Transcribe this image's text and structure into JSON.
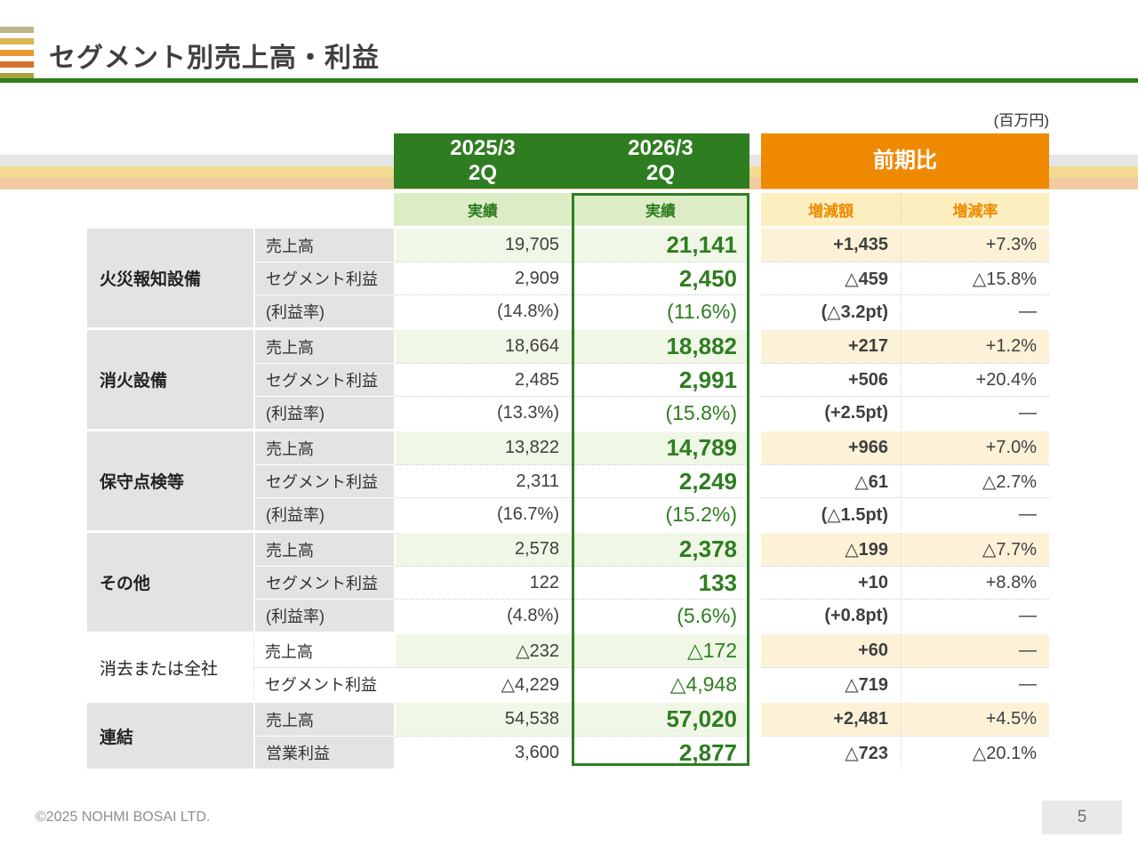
{
  "slide": {
    "title": "セグメント別売上高・利益",
    "unit_label": "(百万円)",
    "logo_colors": [
      "#c2b58a",
      "#ddb64f",
      "#e59a2f",
      "#d2732c",
      "#a6a43c"
    ],
    "footer": {
      "copyright": "©2025 NOHMI BOSAI LTD.",
      "page_number": "5"
    }
  },
  "colors": {
    "accent_green": "#2e7d20",
    "accent_orange": "#ef8a00"
  },
  "table": {
    "columns": {
      "py": {
        "title_line1": "2025/3",
        "title_line2": "2Q",
        "subtitle": "実績"
      },
      "cy": {
        "title_line1": "2026/3",
        "title_line2": "2Q",
        "subtitle": "実績"
      },
      "yoy": {
        "title": "前期比",
        "sub_amount": "増減額",
        "sub_rate": "増減率"
      }
    },
    "groups": [
      {
        "name": "火災報知設備",
        "emphasized": true,
        "rows": [
          {
            "metric": "売上高",
            "kind": "sales",
            "py": "19,705",
            "cy": "21,141",
            "diff": "+1,435",
            "rate": "+7.3%"
          },
          {
            "metric": "セグメント利益",
            "kind": "profit",
            "py": "2,909",
            "cy": "2,450",
            "diff": "△459",
            "rate": "△15.8%"
          },
          {
            "metric": "(利益率)",
            "kind": "margin",
            "py": "(14.8%)",
            "cy": "(11.6%)",
            "diff": "(△3.2pt)",
            "rate": "—"
          }
        ]
      },
      {
        "name": "消火設備",
        "emphasized": true,
        "rows": [
          {
            "metric": "売上高",
            "kind": "sales",
            "py": "18,664",
            "cy": "18,882",
            "diff": "+217",
            "rate": "+1.2%"
          },
          {
            "metric": "セグメント利益",
            "kind": "profit",
            "py": "2,485",
            "cy": "2,991",
            "diff": "+506",
            "rate": "+20.4%"
          },
          {
            "metric": "(利益率)",
            "kind": "margin",
            "py": "(13.3%)",
            "cy": "(15.8%)",
            "diff": "(+2.5pt)",
            "rate": "—"
          }
        ]
      },
      {
        "name": "保守点検等",
        "emphasized": true,
        "rows": [
          {
            "metric": "売上高",
            "kind": "sales",
            "py": "13,822",
            "cy": "14,789",
            "diff": "+966",
            "rate": "+7.0%"
          },
          {
            "metric": "セグメント利益",
            "kind": "profit",
            "py": "2,311",
            "cy": "2,249",
            "diff": "△61",
            "rate": "△2.7%"
          },
          {
            "metric": "(利益率)",
            "kind": "margin",
            "py": "(16.7%)",
            "cy": "(15.2%)",
            "diff": "(△1.5pt)",
            "rate": "—"
          }
        ]
      },
      {
        "name": "その他",
        "emphasized": true,
        "rows": [
          {
            "metric": "売上高",
            "kind": "sales",
            "py": "2,578",
            "cy": "2,378",
            "diff": "△199",
            "rate": "△7.7%"
          },
          {
            "metric": "セグメント利益",
            "kind": "profit",
            "py": "122",
            "cy": "133",
            "diff": "+10",
            "rate": "+8.8%"
          },
          {
            "metric": "(利益率)",
            "kind": "margin",
            "py": "(4.8%)",
            "cy": "(5.6%)",
            "diff": "(+0.8pt)",
            "rate": "—"
          }
        ]
      },
      {
        "name": "消去または全社",
        "emphasized": false,
        "rows": [
          {
            "metric": "売上高",
            "kind": "sales",
            "py": "△232",
            "cy": "△172",
            "diff": "+60",
            "rate": "—"
          },
          {
            "metric": "セグメント利益",
            "kind": "profit",
            "py": "△4,229",
            "cy": "△4,948",
            "diff": "△719",
            "rate": "—"
          }
        ]
      },
      {
        "name": "連結",
        "emphasized": true,
        "rows": [
          {
            "metric": "売上高",
            "kind": "sales",
            "py": "54,538",
            "cy": "57,020",
            "diff": "+2,481",
            "rate": "+4.5%"
          },
          {
            "metric": "営業利益",
            "kind": "profit",
            "py": "3,600",
            "cy": "2,877",
            "diff": "△723",
            "rate": "△20.1%"
          }
        ]
      }
    ]
  }
}
